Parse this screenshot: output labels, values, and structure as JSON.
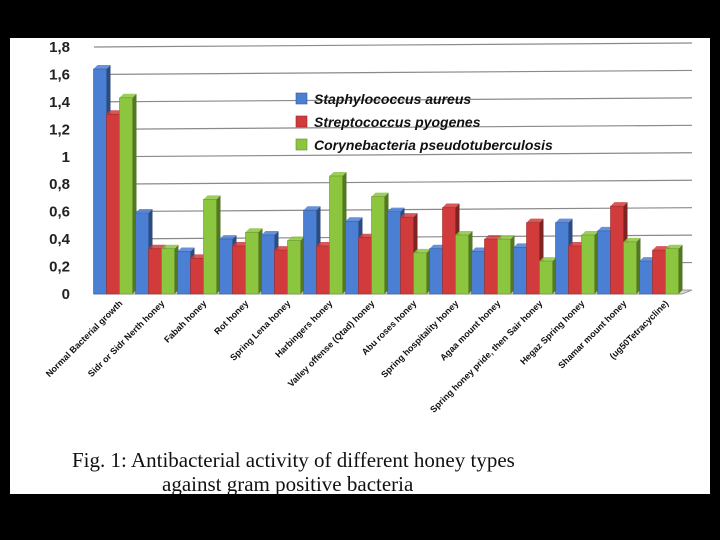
{
  "chart_data": {
    "type": "bar",
    "title": "",
    "xlabel": "",
    "ylabel": "",
    "ylim": [
      0,
      1.8
    ],
    "yticks": [
      "0",
      "0,2",
      "0,4",
      "0,6",
      "0,8",
      "1",
      "1,2",
      "1,4",
      "1,6",
      "1,8"
    ],
    "grid": true,
    "legend_position": "top-right",
    "categories": [
      "Normal Bacterial growth",
      "Sidr or Sidr Nerth honey",
      "Fabah honey",
      "Rot honey",
      "Spring Lena honey",
      "Harbingers honey",
      "Valley offense (Qtad) honey",
      "Abu roses honey",
      "Spring hospitality honey",
      "Agaa mount honey",
      "Spring honey pride, then Sair honey",
      "Hegaz Spring honey",
      "Shamar mount honey",
      "(ug50Tetracycline)"
    ],
    "series": [
      {
        "name": "Staphylococcus aureus",
        "color": "#4a7fd4",
        "values": [
          1.64,
          0.59,
          0.31,
          0.4,
          0.43,
          0.61,
          0.53,
          0.6,
          0.33,
          0.31,
          0.34,
          0.52,
          0.46,
          0.24
        ]
      },
      {
        "name": "Streptococcus pyogenes",
        "color": "#d13b3b",
        "values": [
          1.31,
          0.33,
          0.26,
          0.35,
          0.32,
          0.35,
          0.41,
          0.56,
          0.63,
          0.4,
          0.52,
          0.35,
          0.64,
          0.32
        ]
      },
      {
        "name": "Corynebacteria pseudotuberculosis",
        "color": "#8cc63f",
        "values": [
          1.43,
          0.33,
          0.69,
          0.45,
          0.39,
          0.86,
          0.71,
          0.3,
          0.43,
          0.4,
          0.24,
          0.43,
          0.38,
          0.33
        ]
      }
    ]
  },
  "caption": {
    "line1": "Fig. 1: Antibacterial activity of different honey types",
    "line2": "against gram positive bacteria"
  }
}
